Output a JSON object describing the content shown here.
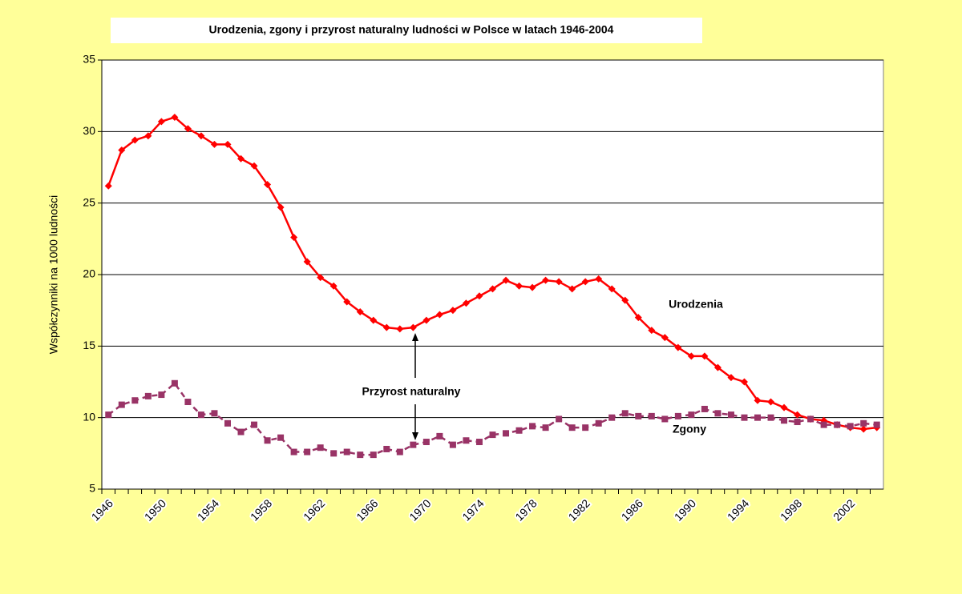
{
  "chart_data": {
    "type": "line",
    "title": "Urodzenia, zgony i przyrost naturalny ludności w Polsce w latach 1946-2004",
    "y_label": "Współczynniki na 1000 ludności",
    "categories": [
      "1946",
      null,
      null,
      null,
      "1950",
      null,
      null,
      null,
      "1954",
      null,
      null,
      null,
      "1958",
      null,
      null,
      null,
      "1962",
      null,
      null,
      null,
      "1966",
      null,
      null,
      null,
      "1970",
      null,
      null,
      null,
      "1974",
      null,
      null,
      null,
      "1978",
      null,
      null,
      null,
      "1982",
      null,
      null,
      null,
      "1986",
      null,
      null,
      null,
      "1990",
      null,
      null,
      null,
      "1994",
      null,
      null,
      null,
      "1998",
      null,
      null,
      null,
      "2002",
      null,
      null
    ],
    "series": [
      {
        "name": "Urodzenia",
        "color": "#FF0000",
        "marker": "diamond",
        "dashed": false,
        "values": [
          26.2,
          28.7,
          29.4,
          29.7,
          30.7,
          31.0,
          30.2,
          29.7,
          29.1,
          29.1,
          28.1,
          27.6,
          26.3,
          24.7,
          22.6,
          20.9,
          19.8,
          19.2,
          18.1,
          17.4,
          16.8,
          16.3,
          16.2,
          16.3,
          16.8,
          17.2,
          17.5,
          18.0,
          18.5,
          19.0,
          19.6,
          19.2,
          19.1,
          19.6,
          19.5,
          19.0,
          19.5,
          19.7,
          19.0,
          18.2,
          17.0,
          16.1,
          15.6,
          14.9,
          14.3,
          14.3,
          13.5,
          12.8,
          12.5,
          11.2,
          11.1,
          10.7,
          10.2,
          9.9,
          9.8,
          9.5,
          9.3,
          9.2,
          9.3
        ]
      },
      {
        "name": "Zgony",
        "color": "#993366",
        "marker": "square",
        "dashed": true,
        "values": [
          10.2,
          10.9,
          11.2,
          11.5,
          11.6,
          12.4,
          11.1,
          10.2,
          10.3,
          9.6,
          9.0,
          9.5,
          8.4,
          8.6,
          7.6,
          7.6,
          7.9,
          7.5,
          7.6,
          7.4,
          7.4,
          7.8,
          7.6,
          8.1,
          8.3,
          8.7,
          8.1,
          8.4,
          8.3,
          8.8,
          8.9,
          9.1,
          9.4,
          9.3,
          9.9,
          9.3,
          9.3,
          9.6,
          10.0,
          10.3,
          10.1,
          10.1,
          9.9,
          10.1,
          10.2,
          10.6,
          10.3,
          10.2,
          10.0,
          10.0,
          10.0,
          9.8,
          9.7,
          9.9,
          9.5,
          9.5,
          9.4,
          9.6,
          9.5
        ]
      }
    ],
    "annotation": "Przyrost naturalny",
    "ylim": [
      5,
      35
    ],
    "yticks": [
      5,
      10,
      15,
      20,
      25,
      30,
      35
    ],
    "grid": true
  }
}
